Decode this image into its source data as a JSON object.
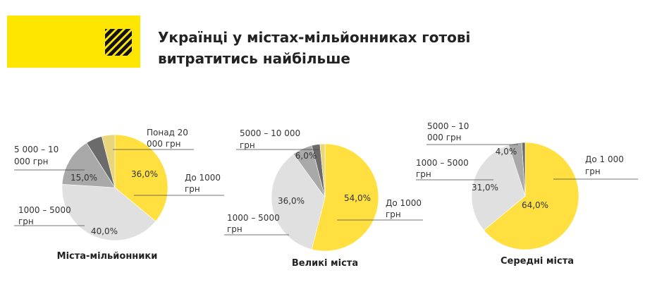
{
  "header": {
    "title_line1": "Українці у містах-мільйонниках готові",
    "title_line2": "витратитись найбільше"
  },
  "logo_icon": "diagonal-stripes-icon",
  "colors": {
    "yellow": "#FFE040",
    "light_gray": "#E0E0E0",
    "mid_gray": "#A9A9A9",
    "dark_gray": "#6B6B6B",
    "pale_yellow": "#EAD67A",
    "brand_yellow": "#FFE600"
  },
  "chart_data": [
    {
      "type": "pie",
      "title": "Міста-мільйонники",
      "slices": [
        {
          "label": "До 1000 грн",
          "value": 36.0,
          "value_label": "36,0%",
          "color": "#FFE040"
        },
        {
          "label": "1000 – 5000 грн",
          "value": 40.0,
          "value_label": "40,0%",
          "color": "#E0E0E0"
        },
        {
          "label": "5 000 – 10 000 грн",
          "value": 15.0,
          "value_label": "15,0%",
          "color": "#A9A9A9"
        },
        {
          "label": "",
          "value": 5.0,
          "value_label": "",
          "color": "#6B6B6B"
        },
        {
          "label": "Понад 20 000 грн",
          "value": 4.0,
          "value_label": "",
          "color": "#EAD67A"
        }
      ]
    },
    {
      "type": "pie",
      "title": "Великі міста",
      "slices": [
        {
          "label": "До 1000 грн",
          "value": 54.0,
          "value_label": "54,0%",
          "color": "#FFE040"
        },
        {
          "label": "1000 – 5000 грн",
          "value": 36.0,
          "value_label": "36,0%",
          "color": "#E0E0E0"
        },
        {
          "label": "5000 – 10 000 грн",
          "value": 6.0,
          "value_label": "6,0%",
          "color": "#A9A9A9"
        },
        {
          "label": "",
          "value": 2.5,
          "value_label": "",
          "color": "#6B6B6B"
        },
        {
          "label": "",
          "value": 1.5,
          "value_label": "",
          "color": "#EAD67A"
        }
      ]
    },
    {
      "type": "pie",
      "title": "Середні міста",
      "slices": [
        {
          "label": "До 1 000 грн",
          "value": 64.0,
          "value_label": "64,0%",
          "color": "#FFE040"
        },
        {
          "label": "1000 – 5000 грн",
          "value": 31.0,
          "value_label": "31,0%",
          "color": "#E0E0E0"
        },
        {
          "label": "5000 – 10 000 грн",
          "value": 4.0,
          "value_label": "4,0%",
          "color": "#A9A9A9"
        },
        {
          "label": "",
          "value": 1.0,
          "value_label": "",
          "color": "#6B6B6B"
        }
      ]
    }
  ],
  "annotations": {
    "c1_top": [
      "Понад 20",
      "000 грн"
    ],
    "c1_left": [
      "5 000 – 10",
      "000 грн"
    ],
    "c1_right": [
      "До 1000",
      "грн"
    ],
    "c1_bottom": [
      "1000 – 5000",
      "грн"
    ],
    "c2_top": [
      "5000 – 10 000",
      "грн"
    ],
    "c2_bottom": [
      "1000 – 5000",
      "грн"
    ],
    "c2_right": [
      "До 1000",
      "грн"
    ],
    "c3_top": [
      "5000 – 10",
      "000 грн"
    ],
    "c3_left": [
      "1000 – 5000",
      "грн"
    ],
    "c3_right": [
      "До 1 000",
      "грн"
    ]
  }
}
